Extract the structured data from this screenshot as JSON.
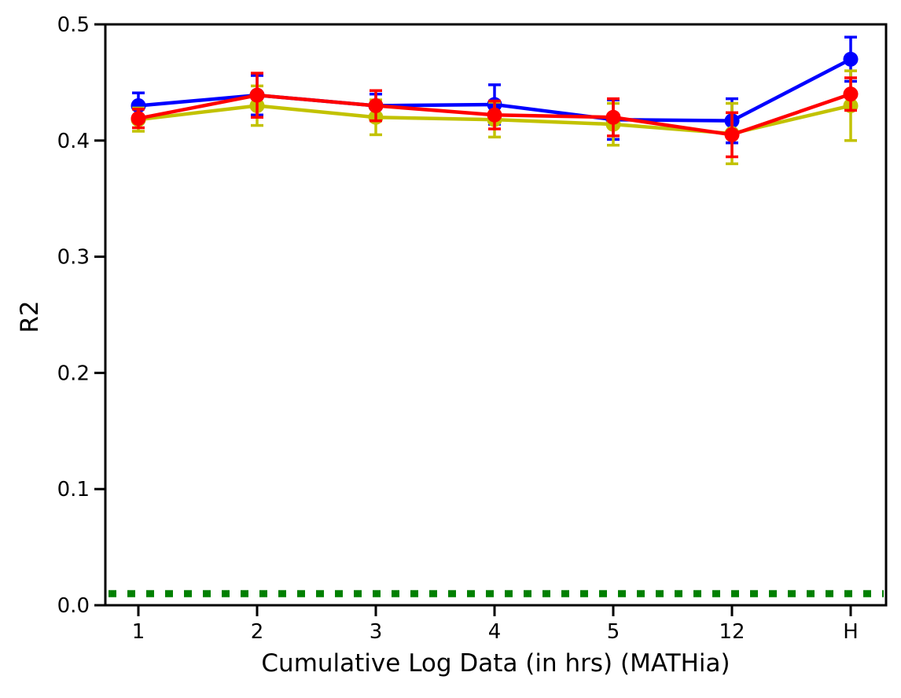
{
  "chart_data": {
    "type": "line",
    "title": "",
    "xlabel": "Cumulative Log Data (in hrs) (MATHia)",
    "ylabel": "R2",
    "x_tick_labels": [
      "1",
      "2",
      "3",
      "4",
      "5",
      "12",
      "H"
    ],
    "y_ticks": [
      0.0,
      0.1,
      0.2,
      0.3,
      0.4,
      0.5
    ],
    "ylim": [
      0.0,
      0.5
    ],
    "grid": false,
    "legend_position": "none",
    "marker": "circle",
    "error_bars": true,
    "baseline": {
      "style": "dotted",
      "color": "#008000",
      "y": 0.01
    },
    "series": [
      {
        "name": "blue",
        "color": "#0000ff",
        "values": [
          0.43,
          0.439,
          0.43,
          0.431,
          0.418,
          0.417,
          0.47
        ],
        "errors": [
          0.011,
          0.017,
          0.01,
          0.017,
          0.017,
          0.019,
          0.019
        ]
      },
      {
        "name": "yellow",
        "color": "#c2c200",
        "values": [
          0.418,
          0.43,
          0.42,
          0.418,
          0.414,
          0.406,
          0.43
        ],
        "errors": [
          0.01,
          0.017,
          0.015,
          0.015,
          0.018,
          0.026,
          0.03
        ]
      },
      {
        "name": "red",
        "color": "#ff0000",
        "values": [
          0.419,
          0.439,
          0.43,
          0.422,
          0.42,
          0.405,
          0.44
        ],
        "errors": [
          0.008,
          0.019,
          0.013,
          0.012,
          0.016,
          0.019,
          0.014
        ]
      }
    ]
  }
}
